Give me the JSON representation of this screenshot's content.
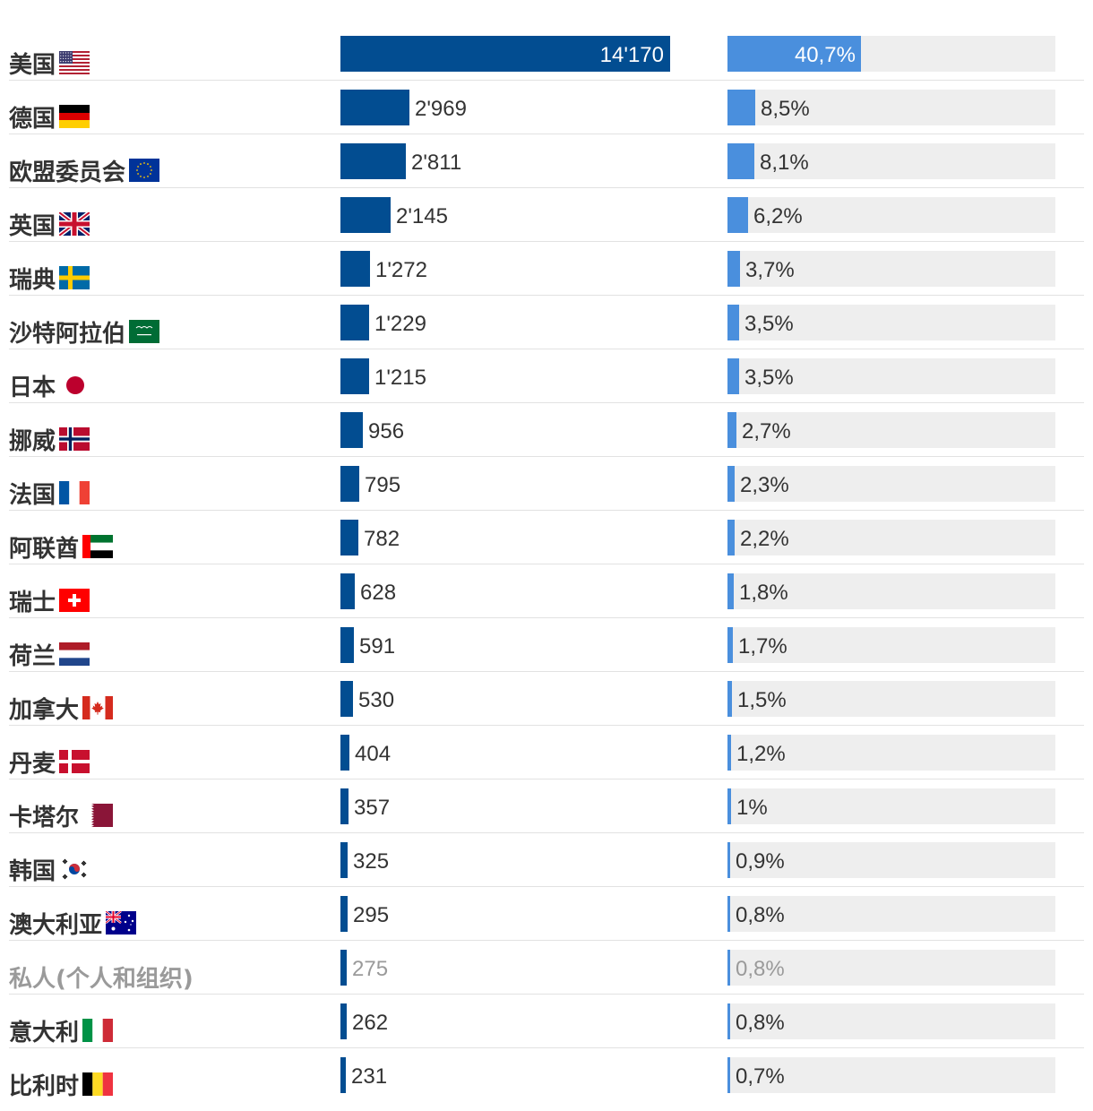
{
  "chart_data": {
    "type": "bar",
    "title": "",
    "series": [
      {
        "name": "",
        "unit": "",
        "color": "#024d91",
        "values": [
          14170,
          2969,
          2811,
          2145,
          1272,
          1229,
          1215,
          956,
          795,
          782,
          628,
          591,
          530,
          404,
          357,
          325,
          295,
          275,
          262,
          231
        ]
      },
      {
        "name": "",
        "unit": "%",
        "color": "#4a8fdd",
        "track_color": "#eeeeee",
        "values": [
          40.7,
          8.5,
          8.1,
          6.2,
          3.7,
          3.5,
          3.5,
          2.7,
          2.3,
          2.2,
          1.8,
          1.7,
          1.5,
          1.2,
          1.0,
          0.9,
          0.8,
          0.8,
          0.8,
          0.7
        ]
      }
    ],
    "rows": [
      {
        "name": "美国",
        "flag": "usa-flag-icon",
        "value_label": "14'170",
        "share_label": "40,7%"
      },
      {
        "name": "德国",
        "flag": "germany-flag-icon",
        "value_label": "2'969",
        "share_label": "8,5%"
      },
      {
        "name": "欧盟委员会",
        "flag": "eu-flag-icon",
        "value_label": "2'811",
        "share_label": "8,1%"
      },
      {
        "name": "英国",
        "flag": "uk-flag-icon",
        "value_label": "2'145",
        "share_label": "6,2%"
      },
      {
        "name": "瑞典",
        "flag": "sweden-flag-icon",
        "value_label": "1'272",
        "share_label": "3,7%"
      },
      {
        "name": "沙特阿拉伯",
        "flag": "saudi-flag-icon",
        "value_label": "1'229",
        "share_label": "3,5%"
      },
      {
        "name": "日本",
        "flag": "japan-flag-icon",
        "value_label": "1'215",
        "share_label": "3,5%"
      },
      {
        "name": "挪威",
        "flag": "norway-flag-icon",
        "value_label": "956",
        "share_label": "2,7%"
      },
      {
        "name": "法国",
        "flag": "france-flag-icon",
        "value_label": "795",
        "share_label": "2,3%"
      },
      {
        "name": "阿联酋",
        "flag": "uae-flag-icon",
        "value_label": "782",
        "share_label": "2,2%"
      },
      {
        "name": "瑞士",
        "flag": "switzerland-flag-icon",
        "value_label": "628",
        "share_label": "1,8%"
      },
      {
        "name": "荷兰",
        "flag": "netherlands-flag-icon",
        "value_label": "591",
        "share_label": "1,7%"
      },
      {
        "name": "加拿大",
        "flag": "canada-flag-icon",
        "value_label": "530",
        "share_label": "1,5%"
      },
      {
        "name": "丹麦",
        "flag": "denmark-flag-icon",
        "value_label": "404",
        "share_label": "1,2%"
      },
      {
        "name": "卡塔尔",
        "flag": "qatar-flag-icon",
        "value_label": "357",
        "share_label": "1%"
      },
      {
        "name": "韩国",
        "flag": "korea-flag-icon",
        "value_label": "325",
        "share_label": "0,9%"
      },
      {
        "name": "澳大利亚",
        "flag": "australia-flag-icon",
        "value_label": "295",
        "share_label": "0,8%"
      },
      {
        "name": "私人(个人和组织)",
        "flag": "",
        "value_label": "275",
        "share_label": "0,8%",
        "muted": true
      },
      {
        "name": "意大利",
        "flag": "italy-flag-icon",
        "value_label": "262",
        "share_label": "0,8%"
      },
      {
        "name": "比利时",
        "flag": "belgium-flag-icon",
        "value_label": "231",
        "share_label": "0,7%"
      }
    ],
    "xlim_value": [
      0,
      14170
    ],
    "xlim_share": [
      0,
      100
    ],
    "grid": false,
    "legend": "none"
  }
}
